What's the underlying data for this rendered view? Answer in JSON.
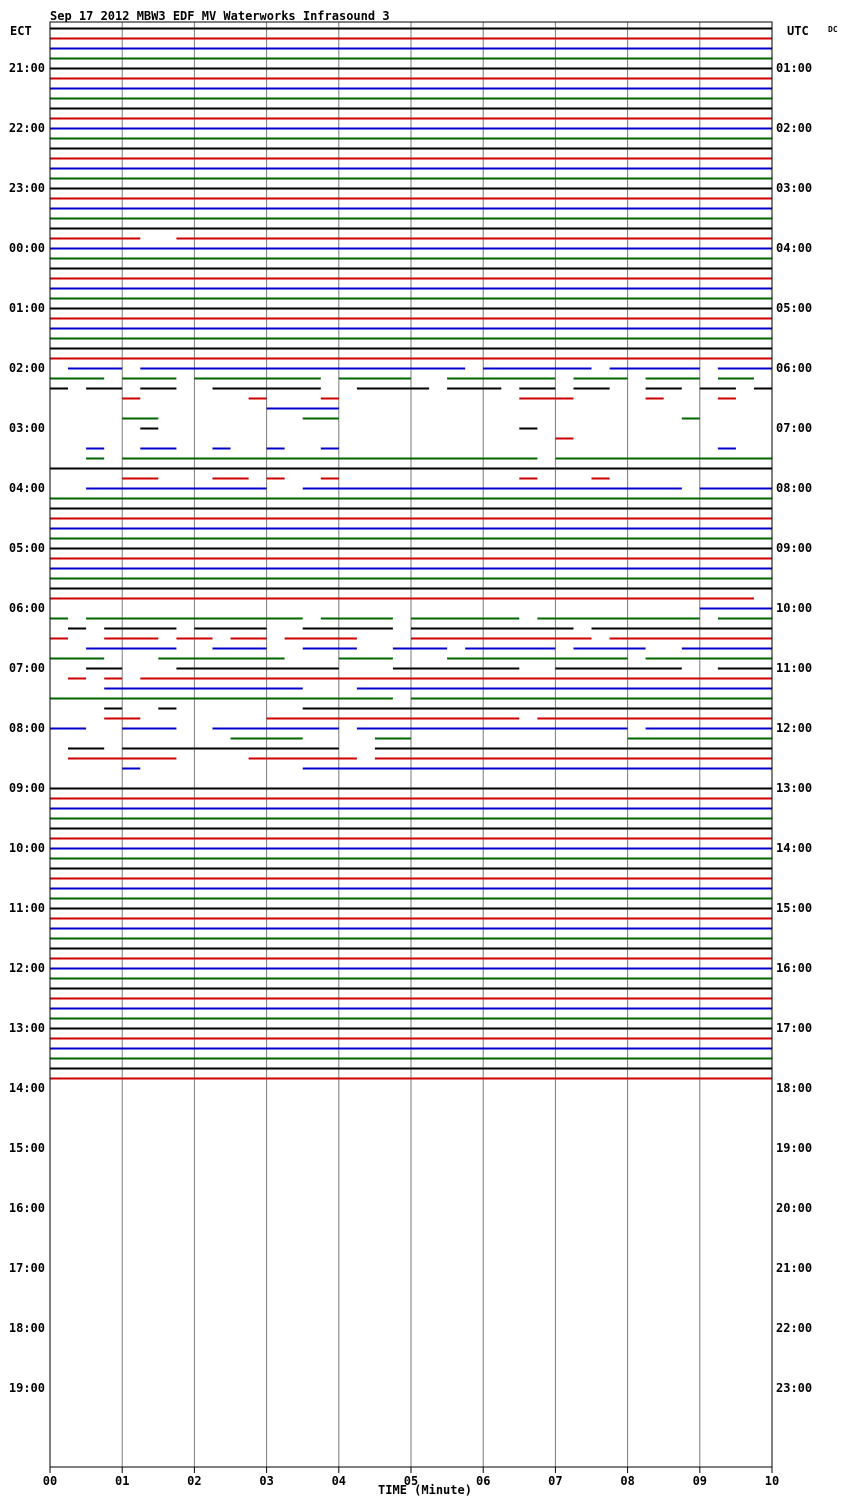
{
  "title": "Sep 17 2012 MBW3 EDF MV Waterworks Infrasound 3",
  "left_zone": "ECT",
  "right_zone": "UTC",
  "dc_label": "DC",
  "chart_data": {
    "type": "line",
    "title": "Sep 17 2012 MBW3 EDF MV Waterworks Infrasound 3",
    "xlabel": "TIME (Minute)",
    "ylabel": "",
    "x_ticks": [
      "00",
      "01",
      "02",
      "03",
      "04",
      "05",
      "06",
      "07",
      "08",
      "09",
      "10"
    ],
    "xlim": [
      0,
      10
    ],
    "grid": true,
    "left_time_labels": [
      "21:00",
      "22:00",
      "23:00",
      "00:00",
      "01:00",
      "02:00",
      "03:00",
      "04:00",
      "05:00",
      "06:00",
      "07:00",
      "08:00",
      "09:00",
      "10:00",
      "11:00",
      "12:00",
      "13:00",
      "14:00",
      "15:00",
      "16:00",
      "17:00",
      "18:00",
      "19:00"
    ],
    "right_time_labels": [
      "01:00",
      "02:00",
      "03:00",
      "04:00",
      "05:00",
      "06:00",
      "07:00",
      "08:00",
      "09:00",
      "10:00",
      "11:00",
      "12:00",
      "13:00",
      "14:00",
      "15:00",
      "16:00",
      "17:00",
      "18:00",
      "19:00",
      "20:00",
      "21:00",
      "22:00",
      "23:00"
    ],
    "line_colors": [
      "#000000",
      "#cc0000",
      "#0000cc",
      "#006600"
    ],
    "rows_per_hour": 6,
    "row_offset": 4,
    "traces": [
      "1111111111111111111111111111111111111111",
      "1111111111111111111111111111111111111111",
      "1111111111111111111111111111111111111111",
      "1111111111111111111111111111111111111111",
      "1111111111111111111111111111111111111111",
      "1111111111111111111111111111111111111111",
      "1111111111111111111111111111111111111111",
      "1111111111111111111111111111111111111111",
      "1111111111111111111111111111111111111111",
      "1111111111111111111111111111111111111111",
      "1111111111111111111111111111111111111111",
      "1111111111111111111111111111111111111111",
      "1111111111111111111111111111111111111111",
      "1111111111111111111111111111111111111111",
      "1111111111111111111111111111111111111111",
      "1111111111111111111111111111111111111111",
      "1111111111111111111111111111111111111111",
      "1111111111111111111111111111111111111111",
      "1111111111111111111111111111111111111111",
      "1111111111111111111111111111111111111111",
      "1111111111111111111111111111111111111111",
      "1111100111111111111111111111111111111111",
      "1111111111111111111111111111111111111111",
      "1111111111111111111111111111111111111111",
      "1111111111111111111111111111111111111111",
      "1111111111111111111111111111111111111111",
      "1111111111111111111111111111111111111111",
      "1111111111111111111111111111111111111111",
      "1111111111111111111111111111111111111111",
      "1111111111111111111111111111111111111111",
      "1111111111111111111111111111111111111111",
      "1111111111111111111111111111111111111111",
      "1111111111111111111111111111111111111111",
      "1111111111111111111111111111111111111111",
      "0111011111111111111111101111110111110111",
      "1110111011111110111100111111011101110110",
      "1011011001111110011110111011011001101101",
      "0000100000010001000000000011100001000100",
      "0000000000001111000000000000000000000000",
      "0000110000000011000000000000000000010000",
      "0000010000000000000000000010000000000000",
      "0000000000000000000000000000100000000000",
      "0010011001001001000000000000000000000100",
      "0010111111111111111111111110111111111111",
      "1111111111111111111111111111111111111111",
      "0000110001101001000000000010001000000000",
      "0011111111110011111111111111111111101111",
      "1111111111111111111111111111111111111111",
      "1111111111111111111111111111111111111111",
      "1111111111111111111111111111111111111111",
      "1111111111111111111111111111111111111111",
      "1111111111111111111111111111111111111111",
      "1111111111111111111111111111111111111111",
      "1111111111111111111111111111111111111111",
      "1111111111111111111111111111111111111111",
      "1111111111111111111111111111111111111111",
      "1111111111111111111111111111111111111111",
      "1111111111111111111111111111111111111110",
      "0000000000000000000000000000000000001111",
      "1011111111111101111011111101111111110111",
      "0101111011110011111011111111101111111111",
      "1001110110110111100011111111110111111111",
      "0011111001110011100111011111011110011111",
      "1110001111111000111000111111111101111111",
      "0011000111111111000111111100111111100111",
      "0101011111111111111111111111111111111111",
      "0001111111111100011111111111111111111111",
      "1111111111111111111011111111111111111111",
      "0001001000000011111111111111111111111111",
      "0001100000001111111111111101111111111111",
      "1100111001111111011111111111111101111111",
      "0000000000111100001100000000000011111111",
      "0110111111111111001111111111111111111111",
      "0111111000011111101111111111111111111111",
      "0000100000000011111111111111111111111111",
      "0000000000000000000000000000000000000000",
      "1111111111111111111111111111111111111111",
      "1111111111111111111111111111111111111111",
      "1111111111111111111111111111111111111111",
      "1111111111111111111111111111111111111111",
      "1111111111111111111111111111111111111111",
      "1111111111111111111111111111111111111111",
      "1111111111111111111111111111111111111111",
      "1111111111111111111111111111111111111111",
      "1111111111111111111111111111111111111111",
      "1111111111111111111111111111111111111111",
      "1111111111111111111111111111111111111111",
      "1111111111111111111111111111111111111111",
      "1111111111111111111111111111111111111111",
      "1111111111111111111111111111111111111111",
      "1111111111111111111111111111111111111111",
      "1111111111111111111111111111111111111111",
      "1111111111111111111111111111111111111111",
      "1111111111111111111111111111111111111111",
      "1111111111111111111111111111111111111111",
      "1111111111111111111111111111111111111111",
      "1111111111111111111111111111111111111111",
      "1111111111111111111111111111111111111111",
      "1111111111111111111111111111111111111111",
      "1111111111111111111111111111111111111111",
      "1111111111111111111111111111111111111111",
      "1111111111111111111111111111111111111111",
      "1111111111111111111111111111111111111111",
      "1111111111111111111111111111111111111111",
      "1111111111111111111111111111111111111111",
      "1111111111111111111111111111111111111111",
      "0000000000000000000000000000000000000000",
      "0000000000000000000000000000000000000000",
      "0000000000000000000000000000000000000000",
      "0000000000000000000000000000000000000000",
      "0000000000000000000000000000000000000000",
      "0000000000000000000000000000000000000000",
      "0000000000000000000000000000000000000000",
      "0000000000000000000000000000000000000000",
      "0000000000000000000000000000000000000000",
      "0000000000000000000000000000000000000000",
      "0000000000000000000000000000000000000000",
      "0000000000000000000000000000000000000000",
      "0000000000000000000000000000000000000000",
      "0000000000000000000000000000000000000000",
      "0000000000000000000000000000000000000000",
      "0000000000000000000000000000000000000000",
      "0000000000000000000000000000000000000000",
      "0000000000000000000000000000000000000000",
      "0000000000000000000000000000000000000000",
      "0000000000000000000000000000000000000000",
      "0000000000000000000000000000000000000000",
      "0000000000000000000000000000000000000000",
      "0000000000000000000000000000000000000000",
      "0000000000000000000000000000000000000000",
      "0000000000000000000000000000000000000000",
      "0000000000000000000000000000000000000000",
      "0000000000000000000000000000000000000000",
      "0000000000000000000000000000000000000000",
      "0000000000000000000000000000000000000000",
      "0000000000000000000000000000000000000000",
      "0000000000000000000000000000000000000000",
      "0000000000000000000000000000000000000000",
      "0000000000000000000000000000000000000000",
      "0000000000000000000000000000000000000000",
      "0000000000000000000000000000000000000000",
      "0000000000000000000000000000000000000000",
      "0000000000000000000000000000000000000000",
      "0000000000000000000000000000000000000000"
    ]
  }
}
